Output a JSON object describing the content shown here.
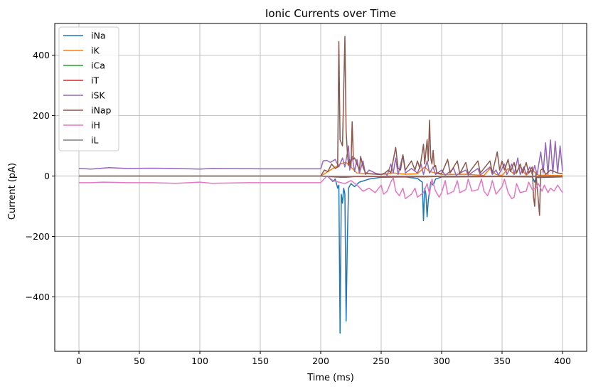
{
  "chart_data": {
    "type": "line",
    "title": "Ionic Currents over Time",
    "xlabel": "Time (ms)",
    "ylabel": "Current (pA)",
    "xlim": [
      -20,
      420
    ],
    "ylim": [
      -580,
      505
    ],
    "xticks": [
      0,
      50,
      100,
      150,
      200,
      250,
      300,
      350,
      400
    ],
    "xtick_labels": [
      "0",
      "50",
      "100",
      "150",
      "200",
      "250",
      "300",
      "350",
      "400"
    ],
    "yticks": [
      -400,
      -200,
      0,
      200,
      400
    ],
    "ytick_labels": [
      "−400",
      "−200",
      "0",
      "200",
      "400"
    ],
    "grid": true,
    "legend_position": "top-left",
    "series": [
      {
        "name": "iNa",
        "color": "#1f77b4",
        "points": [
          [
            0,
            0
          ],
          [
            200,
            0
          ],
          [
            206,
            -2
          ],
          [
            210,
            -18
          ],
          [
            212,
            -10
          ],
          [
            214,
            -40
          ],
          [
            215,
            -30
          ],
          [
            216,
            -520
          ],
          [
            217,
            -60
          ],
          [
            218,
            -90
          ],
          [
            219,
            -40
          ],
          [
            220,
            -60
          ],
          [
            221,
            -480
          ],
          [
            222,
            -220
          ],
          [
            223,
            -40
          ],
          [
            225,
            -25
          ],
          [
            228,
            -35
          ],
          [
            232,
            -20
          ],
          [
            240,
            -10
          ],
          [
            250,
            -4
          ],
          [
            270,
            -3
          ],
          [
            280,
            -8
          ],
          [
            284,
            -20
          ],
          [
            285,
            -148
          ],
          [
            286,
            -40
          ],
          [
            287,
            -60
          ],
          [
            288,
            -135
          ],
          [
            289,
            -80
          ],
          [
            290,
            -50
          ],
          [
            291,
            -20
          ],
          [
            293,
            -30
          ],
          [
            295,
            -10
          ],
          [
            300,
            -3
          ],
          [
            350,
            -2
          ],
          [
            375,
            -3
          ],
          [
            377,
            -20
          ],
          [
            378,
            -5
          ],
          [
            400,
            -3
          ]
        ]
      },
      {
        "name": "iK",
        "color": "#ff7f0e",
        "points": [
          [
            0,
            0
          ],
          [
            200,
            0
          ],
          [
            216,
            40
          ],
          [
            221,
            45
          ],
          [
            230,
            10
          ],
          [
            250,
            5
          ],
          [
            260,
            10
          ],
          [
            270,
            6
          ],
          [
            280,
            8
          ],
          [
            286,
            30
          ],
          [
            290,
            15
          ],
          [
            300,
            5
          ],
          [
            320,
            6
          ],
          [
            335,
            2
          ],
          [
            340,
            25
          ],
          [
            345,
            5
          ],
          [
            350,
            2
          ],
          [
            355,
            25
          ],
          [
            360,
            5
          ],
          [
            365,
            30
          ],
          [
            370,
            3
          ],
          [
            375,
            20
          ],
          [
            380,
            3
          ],
          [
            400,
            2
          ]
        ]
      },
      {
        "name": "iCa",
        "color": "#2ca02c",
        "points": [
          [
            0,
            0
          ],
          [
            200,
            0
          ],
          [
            216,
            -4
          ],
          [
            221,
            -4
          ],
          [
            230,
            -1
          ],
          [
            286,
            -3
          ],
          [
            300,
            -1
          ],
          [
            400,
            -1
          ]
        ]
      },
      {
        "name": "iT",
        "color": "#d62728",
        "points": [
          [
            0,
            0
          ],
          [
            200,
            0
          ],
          [
            216,
            -2
          ],
          [
            221,
            -2
          ],
          [
            300,
            -1
          ],
          [
            400,
            -1
          ]
        ]
      },
      {
        "name": "iSK",
        "color": "#9467bd",
        "points": [
          [
            0,
            25
          ],
          [
            10,
            23
          ],
          [
            25,
            28
          ],
          [
            40,
            25
          ],
          [
            60,
            26
          ],
          [
            80,
            25
          ],
          [
            100,
            23
          ],
          [
            110,
            25
          ],
          [
            150,
            24
          ],
          [
            200,
            24
          ],
          [
            202,
            50
          ],
          [
            205,
            52
          ],
          [
            208,
            45
          ],
          [
            212,
            55
          ],
          [
            215,
            30
          ],
          [
            218,
            60
          ],
          [
            220,
            30
          ],
          [
            223,
            100
          ],
          [
            224,
            20
          ],
          [
            226,
            65
          ],
          [
            228,
            15
          ],
          [
            230,
            55
          ],
          [
            232,
            10
          ],
          [
            235,
            50
          ],
          [
            237,
            5
          ],
          [
            240,
            20
          ],
          [
            245,
            10
          ],
          [
            250,
            5
          ],
          [
            253,
            10
          ],
          [
            255,
            2
          ],
          [
            258,
            40
          ],
          [
            260,
            10
          ],
          [
            262,
            60
          ],
          [
            264,
            5
          ],
          [
            268,
            70
          ],
          [
            270,
            10
          ],
          [
            275,
            25
          ],
          [
            280,
            10
          ],
          [
            283,
            40
          ],
          [
            285,
            5
          ],
          [
            288,
            50
          ],
          [
            290,
            10
          ],
          [
            293,
            30
          ],
          [
            295,
            5
          ],
          [
            300,
            20
          ],
          [
            303,
            3
          ],
          [
            310,
            25
          ],
          [
            312,
            3
          ],
          [
            320,
            20
          ],
          [
            322,
            3
          ],
          [
            330,
            25
          ],
          [
            332,
            3
          ],
          [
            340,
            30
          ],
          [
            342,
            5
          ],
          [
            345,
            20
          ],
          [
            347,
            3
          ],
          [
            352,
            40
          ],
          [
            354,
            5
          ],
          [
            358,
            40
          ],
          [
            360,
            5
          ],
          [
            363,
            60
          ],
          [
            365,
            5
          ],
          [
            368,
            30
          ],
          [
            370,
            5
          ],
          [
            373,
            30
          ],
          [
            375,
            5
          ],
          [
            377,
            35
          ],
          [
            379,
            5
          ],
          [
            382,
            80
          ],
          [
            384,
            10
          ],
          [
            386,
            110
          ],
          [
            388,
            5
          ],
          [
            390,
            120
          ],
          [
            392,
            8
          ],
          [
            394,
            115
          ],
          [
            396,
            10
          ],
          [
            398,
            100
          ],
          [
            400,
            15
          ]
        ]
      },
      {
        "name": "iNap",
        "color": "#8c564b",
        "points": [
          [
            0,
            0
          ],
          [
            200,
            0
          ],
          [
            203,
            20
          ],
          [
            206,
            15
          ],
          [
            209,
            40
          ],
          [
            212,
            25
          ],
          [
            214,
            30
          ],
          [
            215,
            445
          ],
          [
            216,
            120
          ],
          [
            218,
            100
          ],
          [
            220,
            462
          ],
          [
            221,
            150
          ],
          [
            222,
            80
          ],
          [
            223,
            35
          ],
          [
            224,
            55
          ],
          [
            225,
            30
          ],
          [
            226,
            180
          ],
          [
            227,
            55
          ],
          [
            228,
            60
          ],
          [
            230,
            40
          ],
          [
            232,
            20
          ],
          [
            233,
            65
          ],
          [
            235,
            30
          ],
          [
            237,
            10
          ],
          [
            240,
            8
          ],
          [
            250,
            5
          ],
          [
            253,
            10
          ],
          [
            256,
            20
          ],
          [
            258,
            10
          ],
          [
            262,
            95
          ],
          [
            264,
            25
          ],
          [
            266,
            20
          ],
          [
            268,
            70
          ],
          [
            270,
            20
          ],
          [
            275,
            50
          ],
          [
            278,
            20
          ],
          [
            280,
            50
          ],
          [
            282,
            25
          ],
          [
            285,
            105
          ],
          [
            286,
            40
          ],
          [
            287,
            80
          ],
          [
            288,
            120
          ],
          [
            289,
            50
          ],
          [
            290,
            185
          ],
          [
            291,
            60
          ],
          [
            292,
            40
          ],
          [
            293,
            85
          ],
          [
            294,
            30
          ],
          [
            295,
            35
          ],
          [
            296,
            10
          ],
          [
            300,
            8
          ],
          [
            305,
            55
          ],
          [
            307,
            10
          ],
          [
            313,
            50
          ],
          [
            315,
            8
          ],
          [
            320,
            45
          ],
          [
            322,
            8
          ],
          [
            330,
            50
          ],
          [
            332,
            10
          ],
          [
            340,
            50
          ],
          [
            342,
            10
          ],
          [
            346,
            80
          ],
          [
            348,
            20
          ],
          [
            350,
            50
          ],
          [
            352,
            20
          ],
          [
            355,
            55
          ],
          [
            357,
            15
          ],
          [
            360,
            45
          ],
          [
            362,
            10
          ],
          [
            365,
            40
          ],
          [
            367,
            10
          ],
          [
            370,
            45
          ],
          [
            372,
            10
          ],
          [
            375,
            30
          ],
          [
            376,
            -70
          ],
          [
            377,
            -100
          ],
          [
            378,
            10
          ],
          [
            380,
            -80
          ],
          [
            381,
            -130
          ],
          [
            382,
            20
          ],
          [
            384,
            25
          ],
          [
            386,
            5
          ],
          [
            390,
            20
          ],
          [
            393,
            15
          ],
          [
            396,
            10
          ],
          [
            400,
            8
          ]
        ]
      },
      {
        "name": "iH",
        "color": "#e377c2",
        "points": [
          [
            0,
            -22
          ],
          [
            10,
            -22
          ],
          [
            20,
            -20
          ],
          [
            40,
            -22
          ],
          [
            60,
            -22
          ],
          [
            80,
            -24
          ],
          [
            100,
            -20
          ],
          [
            110,
            -24
          ],
          [
            140,
            -22
          ],
          [
            200,
            -22
          ],
          [
            205,
            0
          ],
          [
            207,
            -5
          ],
          [
            210,
            -15
          ],
          [
            215,
            -20
          ],
          [
            220,
            -25
          ],
          [
            225,
            -15
          ],
          [
            230,
            -30
          ],
          [
            235,
            -50
          ],
          [
            240,
            -40
          ],
          [
            245,
            -55
          ],
          [
            250,
            -30
          ],
          [
            252,
            -60
          ],
          [
            255,
            -50
          ],
          [
            258,
            -20
          ],
          [
            260,
            -5
          ],
          [
            262,
            -50
          ],
          [
            265,
            -65
          ],
          [
            268,
            -40
          ],
          [
            270,
            -75
          ],
          [
            275,
            -60
          ],
          [
            278,
            -40
          ],
          [
            280,
            -70
          ],
          [
            285,
            -55
          ],
          [
            288,
            -25
          ],
          [
            290,
            -60
          ],
          [
            292,
            -10
          ],
          [
            295,
            -50
          ],
          [
            298,
            -70
          ],
          [
            300,
            -55
          ],
          [
            303,
            -15
          ],
          [
            305,
            -60
          ],
          [
            310,
            -50
          ],
          [
            313,
            -15
          ],
          [
            315,
            -55
          ],
          [
            320,
            -45
          ],
          [
            322,
            -10
          ],
          [
            325,
            -50
          ],
          [
            330,
            -45
          ],
          [
            333,
            -10
          ],
          [
            335,
            -50
          ],
          [
            338,
            -65
          ],
          [
            340,
            -45
          ],
          [
            342,
            -15
          ],
          [
            345,
            -60
          ],
          [
            350,
            -35
          ],
          [
            352,
            -10
          ],
          [
            355,
            -55
          ],
          [
            358,
            -75
          ],
          [
            360,
            -70
          ],
          [
            362,
            -25
          ],
          [
            365,
            -55
          ],
          [
            370,
            -50
          ],
          [
            372,
            -20
          ],
          [
            375,
            -45
          ],
          [
            378,
            -40
          ],
          [
            380,
            -25
          ],
          [
            383,
            -50
          ],
          [
            385,
            -30
          ],
          [
            388,
            -55
          ],
          [
            390,
            -40
          ],
          [
            393,
            -50
          ],
          [
            396,
            -30
          ],
          [
            400,
            -55
          ]
        ]
      },
      {
        "name": "iL",
        "color": "#7f7f7f",
        "points": [
          [
            0,
            0
          ],
          [
            100,
            0
          ],
          [
            200,
            0
          ],
          [
            216,
            -1
          ],
          [
            221,
            -1
          ],
          [
            300,
            0
          ],
          [
            400,
            0
          ]
        ]
      }
    ]
  }
}
